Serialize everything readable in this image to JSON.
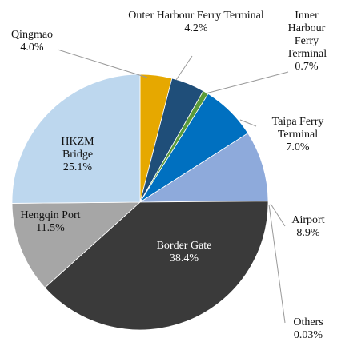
{
  "chart_data": {
    "type": "pie",
    "categories": [
      "Qingmao",
      "Outer Harbour Ferry Terminal",
      "Inner Harbour Ferry Terminal",
      "Taipa Ferry Terminal",
      "Airport",
      "Others",
      "Border Gate",
      "Hengqin Port",
      "HKZM Bridge"
    ],
    "values": [
      4.0,
      4.2,
      0.7,
      7.0,
      8.9,
      0.03,
      38.4,
      11.5,
      25.1
    ],
    "value_labels": [
      "4.0%",
      "4.2%",
      "0.7%",
      "7.0%",
      "8.9%",
      "0.03%",
      "38.4%",
      "11.5%",
      "25.1%"
    ],
    "colors": [
      "#e6a800",
      "#1f4e79",
      "#5b9b3a",
      "#0070c0",
      "#8eaadb",
      "#d0d0d0",
      "#3a3a3a",
      "#a6a6a6",
      "#bdd7ee"
    ]
  }
}
